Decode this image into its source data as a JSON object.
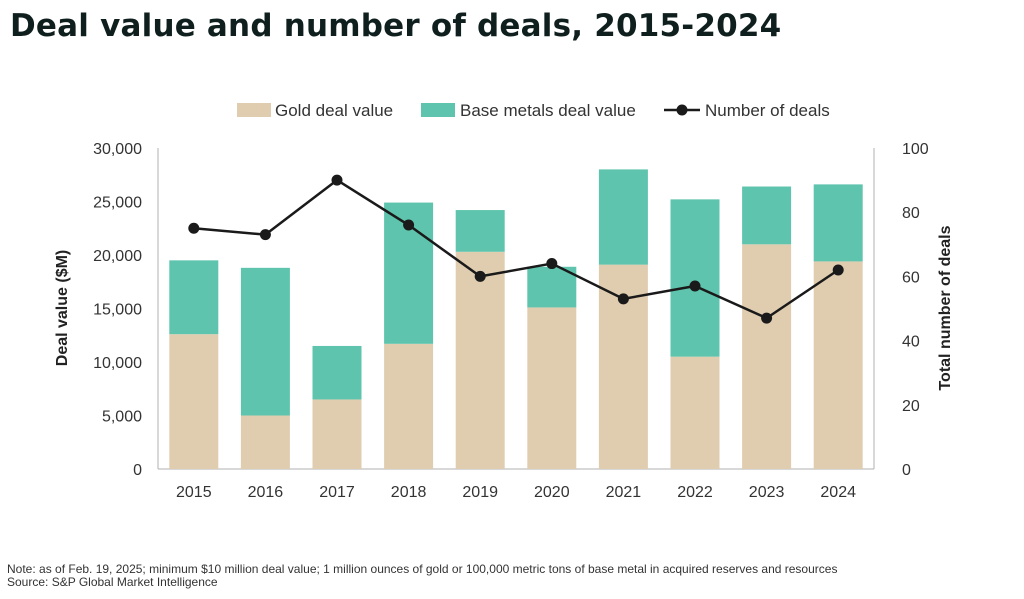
{
  "title": "Deal value and number of deals, 2015-2024",
  "footnote": {
    "note": "Note: as of Feb. 19, 2025; minimum $10 million deal value; 1 million ounces of gold or 100,000 metric tons of base metal in acquired reserves and resources",
    "source": "Source: S&P Global Market Intelligence"
  },
  "colors": {
    "gold": "#e0cdb0",
    "base": "#5ec4ad",
    "line": "#1a1a1a",
    "axis": "#b0b0b0",
    "text": "#333333"
  },
  "chart_data": {
    "type": "bar",
    "stacked": true,
    "categories": [
      "2015",
      "2016",
      "2017",
      "2018",
      "2019",
      "2020",
      "2021",
      "2022",
      "2023",
      "2024"
    ],
    "series": [
      {
        "name": "Gold deal value",
        "axis": "left",
        "values": [
          12600,
          5000,
          6500,
          11700,
          20300,
          15100,
          19100,
          10500,
          21000,
          19400
        ]
      },
      {
        "name": "Base metals deal value",
        "axis": "left",
        "values": [
          6900,
          13800,
          5000,
          13200,
          3900,
          3800,
          8900,
          14700,
          5400,
          7200
        ]
      },
      {
        "name": "Number of deals",
        "type": "line",
        "axis": "right",
        "values": [
          75,
          73,
          90,
          76,
          60,
          64,
          53,
          57,
          47,
          62
        ]
      }
    ],
    "ylabel": "Deal value ($M)",
    "ylabel_right": "Total number of deals",
    "ylim": [
      0,
      30000
    ],
    "ylim_right": [
      0,
      100
    ],
    "yticks": [
      "0",
      "5,000",
      "10,000",
      "15,000",
      "20,000",
      "25,000",
      "30,000"
    ],
    "yticks_right": [
      "0",
      "20",
      "40",
      "60",
      "80",
      "100"
    ],
    "legend": [
      "Gold deal value",
      "Base metals deal value",
      "Number of deals"
    ],
    "legend_position": "top"
  }
}
